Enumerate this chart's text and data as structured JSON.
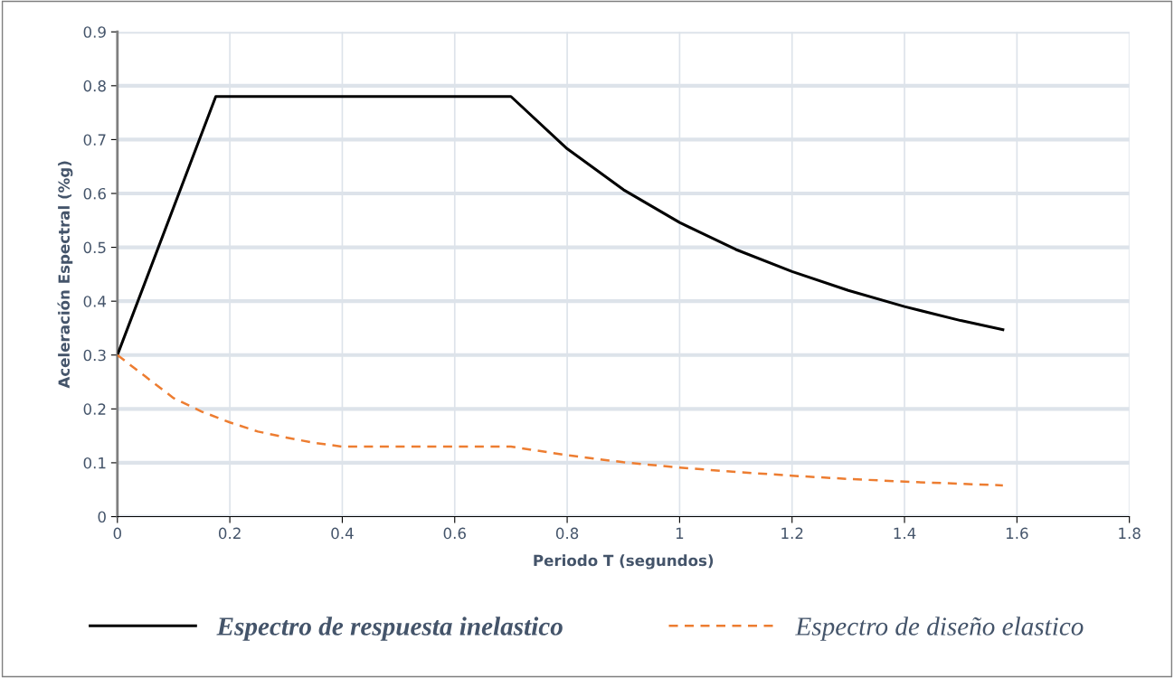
{
  "chart_data": {
    "type": "line",
    "xlabel": "Periodo T (segundos)",
    "ylabel": "Aceleración Espectral (%g)",
    "xlim": [
      0,
      1.8
    ],
    "xticks": [
      0,
      0.2,
      0.4,
      0.6,
      0.8,
      1,
      1.2,
      1.4,
      1.6,
      1.8
    ],
    "ylim": [
      0,
      0.9
    ],
    "yticks": [
      0,
      0.1,
      0.2,
      0.3,
      0.4,
      0.5,
      0.6,
      0.7,
      0.8,
      0.9
    ],
    "grid": true,
    "legend": "bottom",
    "marker": "none",
    "series": [
      {
        "name": "Espectro de respuesta inelastico",
        "color": "#000000",
        "line_style": "solid",
        "x": [
          0,
          0.175,
          0.7,
          0.8,
          0.9,
          1.0,
          1.1,
          1.2,
          1.3,
          1.4,
          1.5,
          1.575
        ],
        "values": [
          0.3,
          0.78,
          0.78,
          0.683,
          0.607,
          0.546,
          0.496,
          0.455,
          0.42,
          0.39,
          0.364,
          0.347
        ]
      },
      {
        "name": "Espectro de diseño elastico",
        "color": "#ed7d31",
        "line_style": "dashed",
        "x": [
          0,
          0.05,
          0.1,
          0.15,
          0.2,
          0.25,
          0.3,
          0.35,
          0.4,
          0.7,
          0.8,
          0.9,
          1.0,
          1.1,
          1.2,
          1.3,
          1.4,
          1.5,
          1.575
        ],
        "values": [
          0.3,
          0.26,
          0.22,
          0.195,
          0.175,
          0.158,
          0.147,
          0.137,
          0.13,
          0.13,
          0.114,
          0.101,
          0.091,
          0.083,
          0.076,
          0.07,
          0.065,
          0.061,
          0.058
        ]
      }
    ]
  }
}
